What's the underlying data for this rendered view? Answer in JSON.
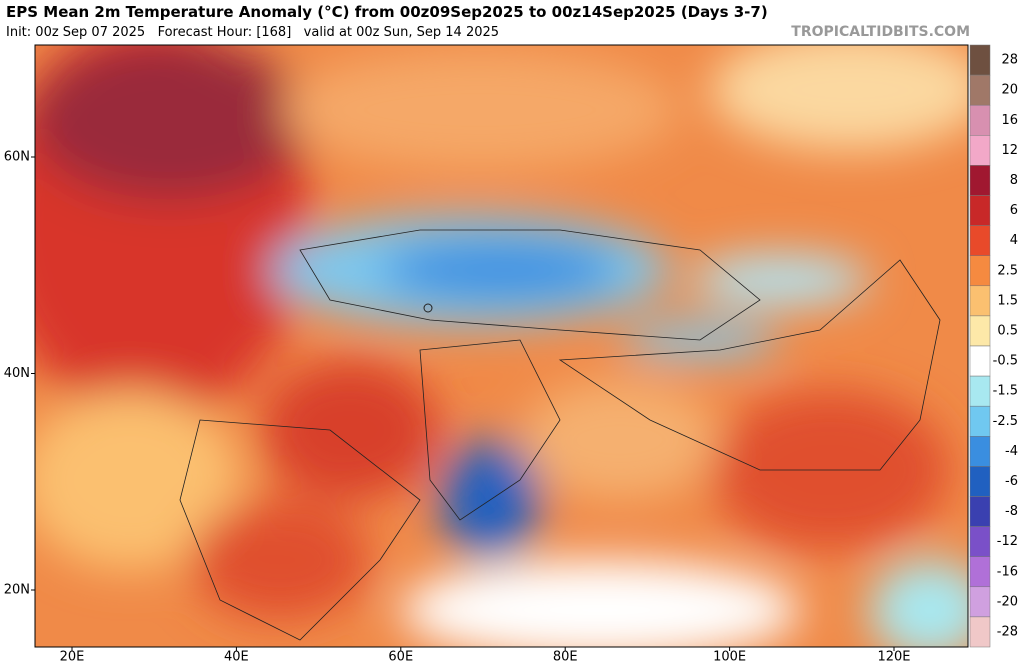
{
  "header": {
    "title": "EPS Mean 2m Temperature Anomaly (°C) from 00z09Sep2025 to 00z14Sep2025 (Days 3-7)",
    "subtitle": "Init: 00z Sep 07 2025   Forecast Hour: [168]   valid at 00z Sun, Sep 14 2025",
    "watermark": "TROPICALTIDBITS.COM"
  },
  "map": {
    "lat_labels": [
      "60N",
      "40N",
      "20N"
    ],
    "lon_labels": [
      "20E",
      "40E",
      "60E",
      "80E",
      "100E",
      "120E"
    ]
  },
  "colorbar": {
    "labels": [
      28,
      20,
      16,
      12,
      8,
      6,
      4,
      2.5,
      1.5,
      0.5,
      -0.5,
      -1.5,
      -2.5,
      -4,
      -6,
      -8,
      -12,
      -16,
      -20,
      -28
    ]
  }
}
